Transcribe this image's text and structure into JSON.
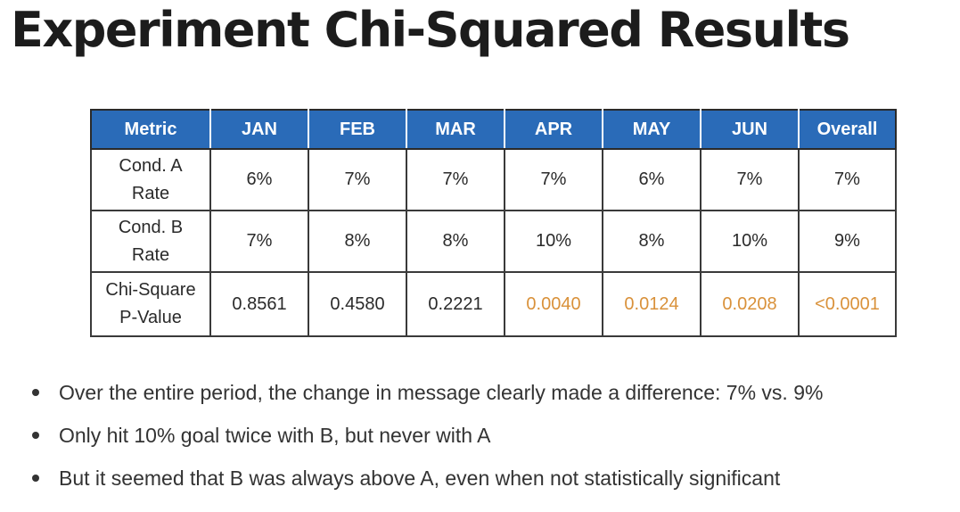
{
  "slide": {
    "title": "Experiment Chi-Squared Results"
  },
  "table": {
    "headers": [
      "Metric",
      "JAN",
      "FEB",
      "MAR",
      "APR",
      "MAY",
      "JUN",
      "Overall"
    ],
    "rows": [
      {
        "label_line1": "Cond. A",
        "label_line2": "Rate",
        "values": [
          "6%",
          "7%",
          "7%",
          "7%",
          "6%",
          "7%",
          "7%"
        ]
      },
      {
        "label_line1": "Cond. B",
        "label_line2": "Rate",
        "values": [
          "7%",
          "8%",
          "8%",
          "10%",
          "8%",
          "10%",
          "9%"
        ]
      },
      {
        "label_line1": "Chi-Square",
        "label_line2": "P-Value",
        "values": [
          "0.8561",
          "0.4580",
          "0.2221",
          "0.0040",
          "0.0124",
          "0.0208",
          "<0.0001"
        ]
      }
    ],
    "highlight_color": "#d9913a",
    "header_color": "#2a6bb8"
  },
  "bullets": [
    "Over the entire period, the change in message clearly made a difference: 7% vs. 9%",
    "Only hit 10% goal twice with B, but never with A",
    "But it seemed that B was always above A, even when not statistically significant"
  ]
}
